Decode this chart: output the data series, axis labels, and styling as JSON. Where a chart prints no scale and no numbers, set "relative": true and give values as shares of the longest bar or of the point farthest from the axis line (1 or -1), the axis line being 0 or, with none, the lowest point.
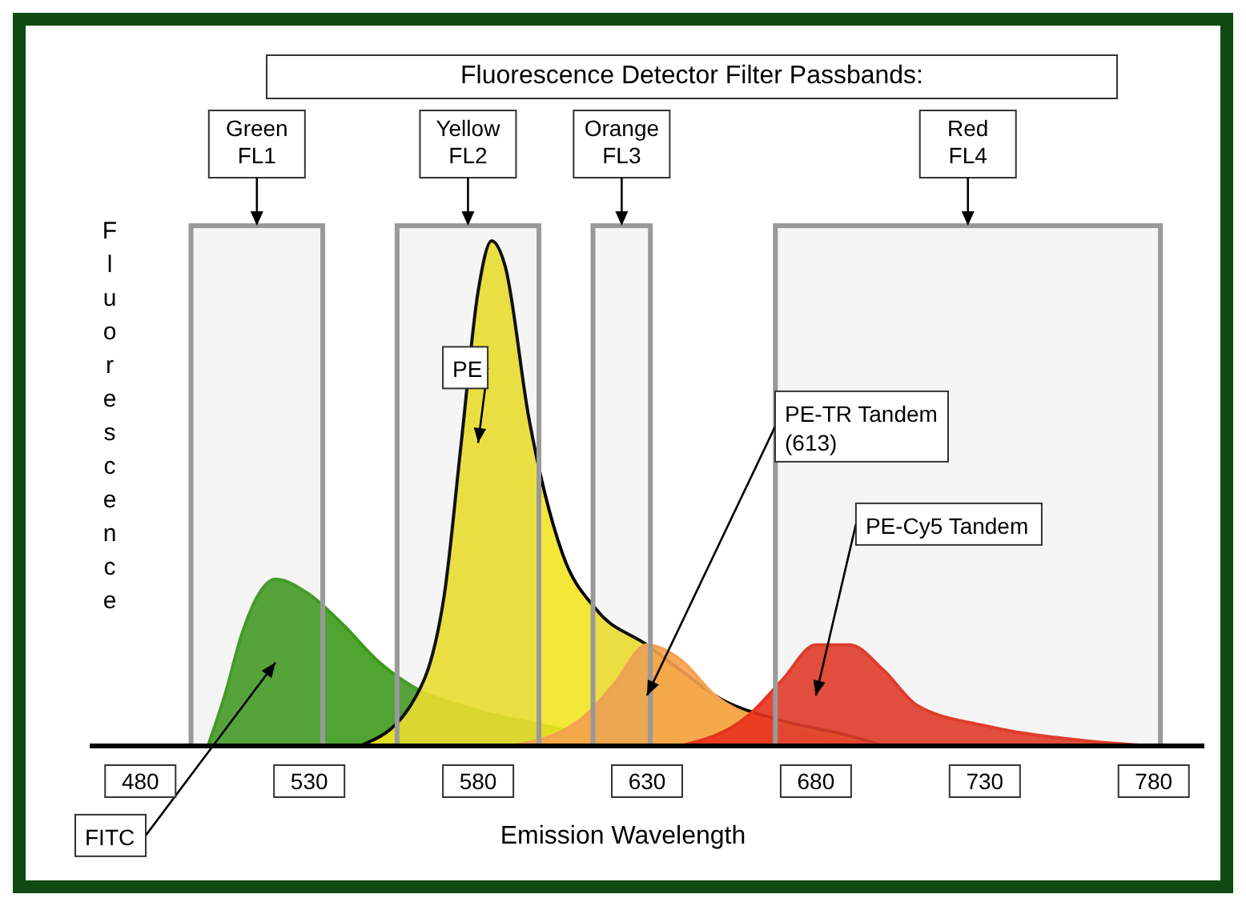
{
  "chart_data": {
    "type": "area",
    "title": "Fluorescence Detector Filter Passbands:",
    "xlabel": "Emission Wavelength",
    "ylabel": "Fluorescence",
    "relative": true,
    "xlim": [
      465,
      795
    ],
    "xticks": [
      480,
      530,
      580,
      630,
      680,
      730,
      780
    ],
    "series": [
      {
        "name": "FITC",
        "color": "#3c9a1c",
        "x": [
          500,
          505,
          510,
          515,
          520,
          530,
          540,
          550,
          560,
          580,
          600,
          620,
          630
        ],
        "values": [
          0,
          0.1,
          0.22,
          0.3,
          0.33,
          0.3,
          0.24,
          0.17,
          0.12,
          0.07,
          0.04,
          0.01,
          0
        ]
      },
      {
        "name": "PE",
        "color": "#f2e422",
        "x": [
          545,
          560,
          570,
          575,
          580,
          584,
          588,
          595,
          605,
          615,
          630,
          640,
          650,
          670,
          690,
          700
        ],
        "values": [
          0,
          0.08,
          0.3,
          0.6,
          0.9,
          1,
          0.95,
          0.65,
          0.38,
          0.27,
          0.2,
          0.15,
          0.1,
          0.05,
          0.02,
          0
        ]
      },
      {
        "name": "PE-TR Tandem (613)",
        "color": "#f5a24e",
        "x": [
          590,
          610,
          620,
          630,
          640,
          650,
          665,
          680,
          700
        ],
        "values": [
          0,
          0.05,
          0.12,
          0.2,
          0.17,
          0.1,
          0.05,
          0.02,
          0
        ]
      },
      {
        "name": "PE-Cy5 Tandem",
        "color": "#e8321e",
        "x": [
          640,
          660,
          670,
          680,
          690,
          700,
          710,
          730,
          760,
          780
        ],
        "values": [
          0,
          0.06,
          0.13,
          0.2,
          0.2,
          0.15,
          0.08,
          0.04,
          0.01,
          0
        ]
      }
    ],
    "bands": [
      {
        "axis": "x",
        "from": 495,
        "to": 534,
        "label": "Green FL1",
        "color": "#999999"
      },
      {
        "axis": "x",
        "from": 556,
        "to": 598,
        "label": "Yellow FL2",
        "color": "#999999"
      },
      {
        "axis": "x",
        "from": 614,
        "to": 631,
        "label": "Orange FL3",
        "color": "#999999"
      },
      {
        "axis": "x",
        "from": 668,
        "to": 782,
        "label": "Red FL4",
        "color": "#999999"
      }
    ]
  }
}
